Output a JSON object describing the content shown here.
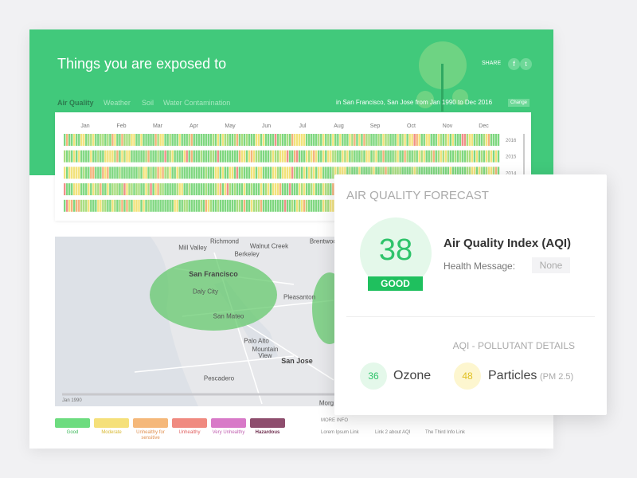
{
  "header": {
    "title": "Things you are exposed to",
    "share": "SHARE",
    "tabs": [
      "Air Quality",
      "Weather",
      "Soil",
      "Water Contamination"
    ],
    "location": "in San Francisco, San Jose from Jan 1990 to Dec 2016",
    "change": "Change"
  },
  "calendar": {
    "months": [
      "Jan",
      "Feb",
      "Mar",
      "Apr",
      "May",
      "Jun",
      "Jul",
      "Aug",
      "Sep",
      "Oct",
      "Nov",
      "Dec"
    ],
    "years": [
      "2016",
      "2015",
      "2014"
    ]
  },
  "map": {
    "places": [
      "Richmond",
      "Mill Valley",
      "Berkeley",
      "Walnut Creek",
      "Brentwood",
      "San Francisco",
      "Daly City",
      "Pleasanton",
      "San Mateo",
      "Palo Alto",
      "Mountain View",
      "San Jose",
      "Pescadero",
      "Morg"
    ],
    "timeline_start": "Jan 1990"
  },
  "legend": [
    "Good",
    "Moderate",
    "Unhealthy for sensitive",
    "Unhealthy",
    "Very Unhealthy",
    "Hazardous"
  ],
  "more_info": {
    "title": "MORE INFO",
    "links": [
      "Lorem Ipsum Link",
      "Link 2 about AQI",
      "The Third Info Link"
    ]
  },
  "forecast": {
    "title": "AIR QUALITY FORECAST",
    "aqi": 38,
    "status": "GOOD",
    "index_label": "Air Quality Index (AQI)",
    "health_label": "Health Message:",
    "health_value": "None",
    "details_title": "AQI - POLLUTANT DETAILS",
    "pollutants": [
      {
        "value": 36,
        "name": "Ozone"
      },
      {
        "value": 48,
        "name": "Particles",
        "unit": "(PM 2.5)"
      }
    ]
  }
}
